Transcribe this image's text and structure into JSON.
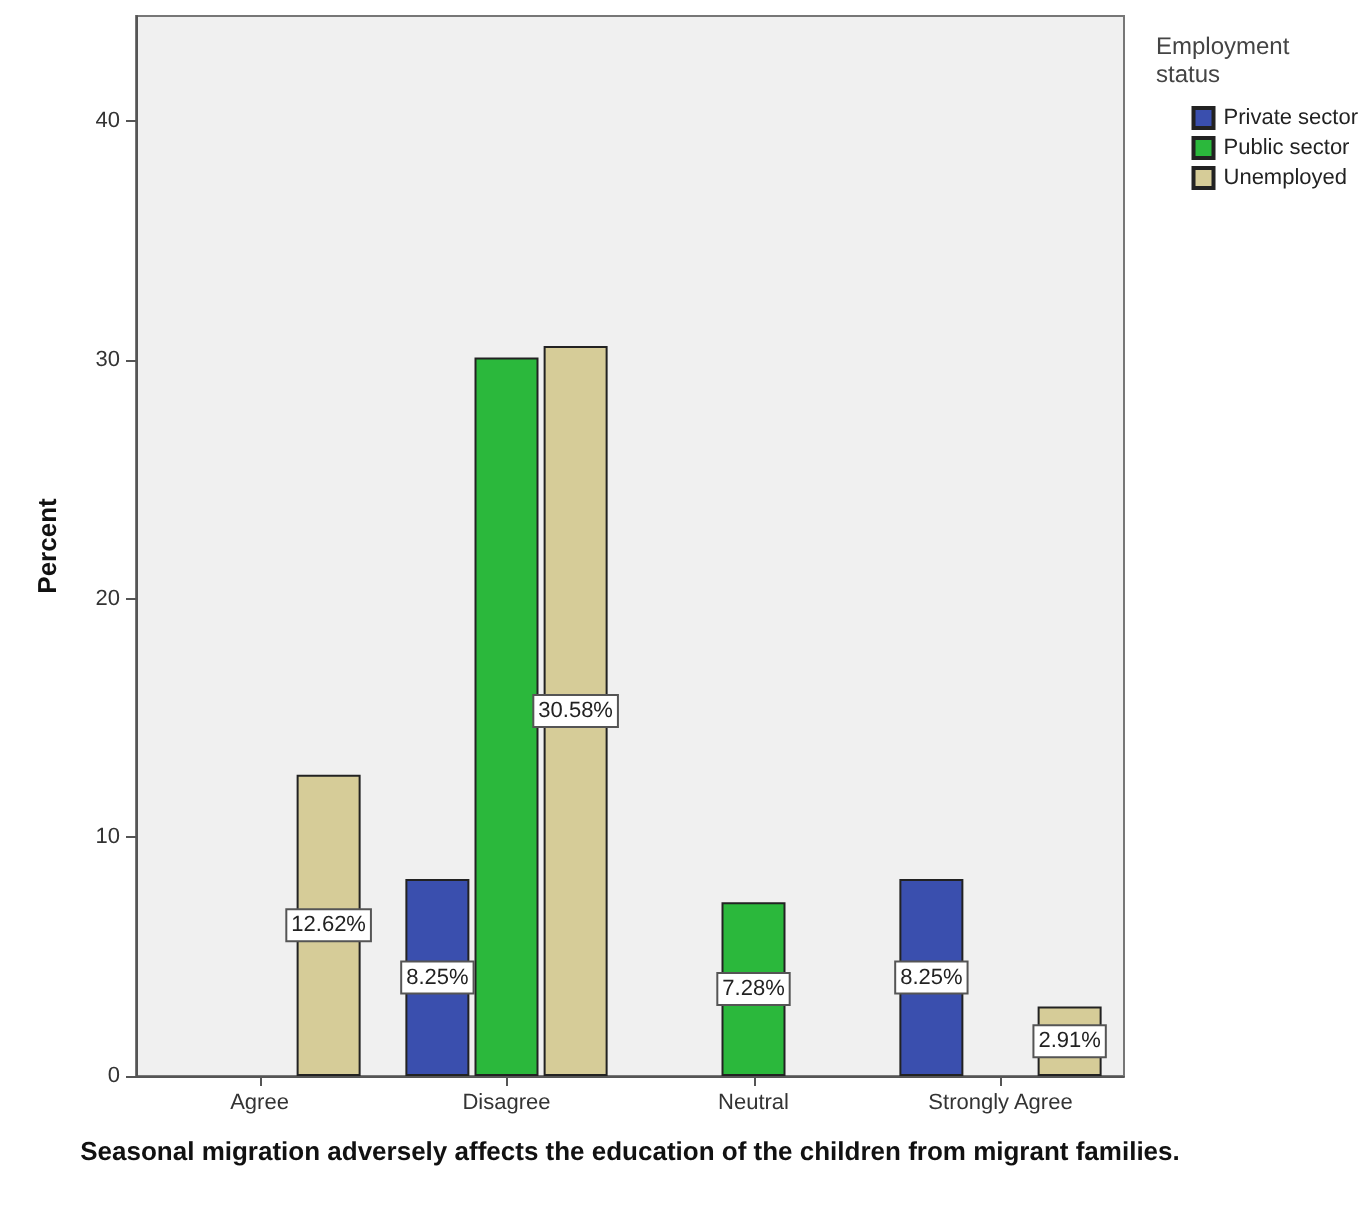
{
  "chart_data": {
    "type": "bar",
    "categories": [
      "Agree",
      "Disagree",
      "Neutral",
      "Strongly Agree"
    ],
    "series": [
      {
        "name": "Private sector",
        "color": "#3a4fae",
        "values": [
          null,
          8.25,
          null,
          8.25
        ],
        "value_labels": [
          null,
          "8.25%",
          null,
          "8.25%"
        ]
      },
      {
        "name": "Public sector",
        "color": "#2bb83c",
        "values": [
          null,
          30.1,
          7.28,
          null
        ],
        "value_labels": [
          null,
          null,
          "7.28%",
          null
        ]
      },
      {
        "name": "Unemployed",
        "color": "#d6cc98",
        "values": [
          12.62,
          30.58,
          null,
          2.91
        ],
        "value_labels": [
          "12.62%",
          "30.58%",
          null,
          "2.91%"
        ]
      }
    ],
    "xlabel": "Seasonal migration adversely affects the education of the children from migrant families.",
    "ylabel": "Percent",
    "legend_title": "Employment status",
    "legend": "top right",
    "ylim": [
      0,
      44.4
    ],
    "yticks": [
      0,
      10,
      20,
      30,
      40
    ],
    "grid": false
  }
}
